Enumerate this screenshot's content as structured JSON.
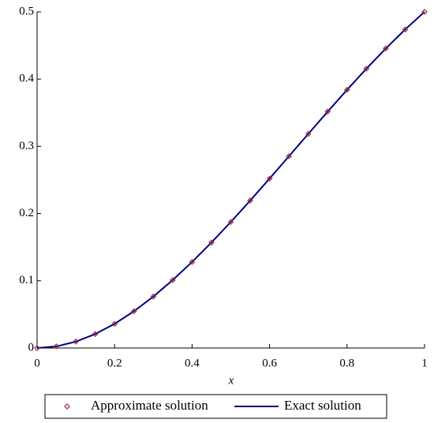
{
  "chart_data": {
    "type": "line",
    "xlabel": "x",
    "x": [
      0,
      0.05,
      0.1,
      0.15,
      0.2,
      0.25,
      0.3,
      0.35,
      0.4,
      0.45,
      0.5,
      0.55,
      0.6,
      0.65,
      0.7,
      0.75,
      0.8,
      0.85,
      0.9,
      0.95,
      1
    ],
    "series": [
      {
        "name": "Approximate solution",
        "color": "#a0283c",
        "marker": "diamond",
        "values": [
          0,
          0.00244,
          0.0095,
          0.0208,
          0.036,
          0.0547,
          0.0765,
          0.1011,
          0.128,
          0.1569,
          0.1875,
          0.2193,
          0.252,
          0.2852,
          0.3185,
          0.3516,
          0.384,
          0.4154,
          0.4455,
          0.4738,
          0.5
        ]
      },
      {
        "name": "Exact solution",
        "color": "#000080",
        "marker": "line",
        "values": [
          0,
          0.00244,
          0.0095,
          0.0208,
          0.036,
          0.0547,
          0.0765,
          0.1011,
          0.128,
          0.1569,
          0.1875,
          0.2193,
          0.252,
          0.2852,
          0.3185,
          0.3516,
          0.384,
          0.4154,
          0.4455,
          0.4738,
          0.5
        ]
      }
    ],
    "xlim": [
      0,
      1
    ],
    "xticks": [
      0,
      0.2,
      0.4,
      0.6,
      0.8,
      1
    ],
    "ylim": [
      0,
      0.5
    ],
    "yticks": [
      0,
      0.1,
      0.2,
      0.3,
      0.4,
      0.5
    ],
    "legend": "bottom"
  }
}
